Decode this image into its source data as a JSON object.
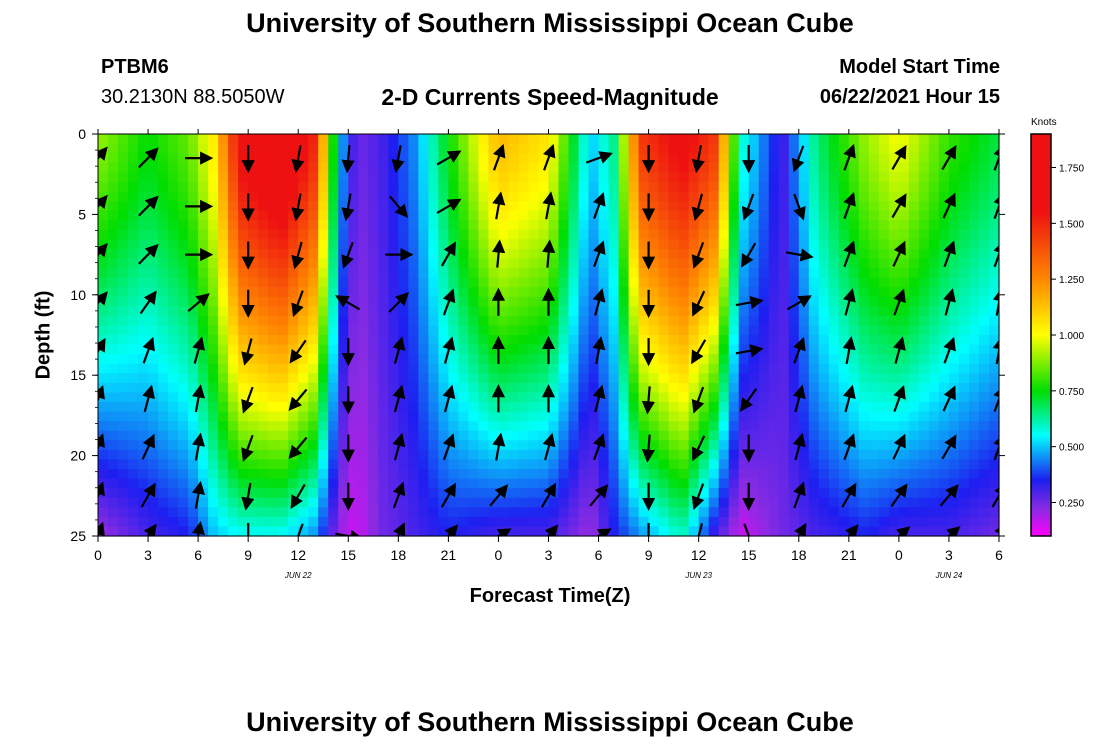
{
  "header": {
    "title": "University of Southern Mississippi Ocean Cube",
    "station": "PTBM6",
    "coords": "30.2130N  88.5050W",
    "subtitle": "2-D Currents Speed-Magnitude",
    "start_label": "Model Start Time",
    "start_date": "06/22/2021 Hour 15"
  },
  "footer": {
    "title": "University of Southern Mississippi Ocean Cube"
  },
  "colors": {
    "magenta": "#ff00ff",
    "purple": "#8a2be2",
    "blue": "#1e1ef0",
    "cyan": "#00ffff",
    "green": "#00dd00",
    "yellow": "#ffff00",
    "orange": "#ff8800",
    "red": "#ee1111",
    "arrow": "#000000"
  },
  "chart_data": {
    "type": "heatmap",
    "title": "2-D Currents Speed-Magnitude",
    "xlabel": "Forecast Time(Z)",
    "ylabel": "Depth (ft)",
    "x_tick_labels": [
      "0",
      "3",
      "6",
      "9",
      "12",
      "15",
      "18",
      "21",
      "0",
      "3",
      "6",
      "9",
      "12",
      "15",
      "18",
      "21",
      "0",
      "3",
      "6"
    ],
    "x_range_hours": [
      0,
      54
    ],
    "day_labels": [
      {
        "label": "JUN 22",
        "hour": 12
      },
      {
        "label": "JUN 23",
        "hour": 36
      },
      {
        "label": "JUN 24",
        "hour": 51
      }
    ],
    "y_ticks": [
      0,
      5,
      10,
      15,
      20,
      25
    ],
    "ylim": [
      0,
      25
    ],
    "y_inverted": true,
    "colorbar": {
      "unit": "Knots",
      "tick_labels": [
        "0.250",
        "0.500",
        "0.750",
        "1.000",
        "1.250",
        "1.500",
        "1.750"
      ],
      "ticks": [
        0.25,
        0.5,
        0.75,
        1.0,
        1.25,
        1.5,
        1.75
      ],
      "range": [
        0.1,
        1.9
      ]
    },
    "speed_profiles": [
      {
        "hour": 0,
        "surface": 0.9,
        "bottom": 0.2
      },
      {
        "hour": 3,
        "surface": 0.75,
        "bottom": 0.3
      },
      {
        "hour": 5.5,
        "surface": 0.85,
        "bottom": 0.35
      },
      {
        "hour": 7,
        "surface": 1.05,
        "bottom": 0.5
      },
      {
        "hour": 8.5,
        "surface": 1.6,
        "bottom": 0.55
      },
      {
        "hour": 11,
        "surface": 1.75,
        "bottom": 0.55
      },
      {
        "hour": 13,
        "surface": 1.5,
        "bottom": 0.45
      },
      {
        "hour": 14.5,
        "surface": 0.5,
        "bottom": 0.2
      },
      {
        "hour": 15.5,
        "surface": 0.25,
        "bottom": 0.15
      },
      {
        "hour": 17,
        "surface": 0.3,
        "bottom": 0.25
      },
      {
        "hour": 19,
        "surface": 0.45,
        "bottom": 0.3
      },
      {
        "hour": 21,
        "surface": 0.75,
        "bottom": 0.35
      },
      {
        "hour": 24,
        "surface": 1.15,
        "bottom": 0.3
      },
      {
        "hour": 27,
        "surface": 1.05,
        "bottom": 0.3
      },
      {
        "hour": 29.5,
        "surface": 0.5,
        "bottom": 0.2
      },
      {
        "hour": 31,
        "surface": 0.65,
        "bottom": 0.35
      },
      {
        "hour": 32.5,
        "surface": 1.45,
        "bottom": 0.45
      },
      {
        "hour": 35,
        "surface": 1.6,
        "bottom": 0.6
      },
      {
        "hour": 37,
        "surface": 1.45,
        "bottom": 0.3
      },
      {
        "hour": 38.5,
        "surface": 0.6,
        "bottom": 0.15
      },
      {
        "hour": 41,
        "surface": 0.3,
        "bottom": 0.25
      },
      {
        "hour": 43,
        "surface": 0.65,
        "bottom": 0.3
      },
      {
        "hour": 46,
        "surface": 0.9,
        "bottom": 0.35
      },
      {
        "hour": 48,
        "surface": 1.0,
        "bottom": 0.3
      },
      {
        "hour": 51,
        "surface": 0.8,
        "bottom": 0.3
      },
      {
        "hour": 54,
        "surface": 0.7,
        "bottom": 0.25
      }
    ],
    "arrow_hours": [
      0,
      3,
      6,
      9,
      12,
      15,
      18,
      21,
      24,
      27,
      30,
      33,
      36,
      39,
      42,
      45,
      48,
      51,
      54
    ],
    "arrow_depths": [
      1.5,
      4.5,
      7.5,
      10.5,
      13.5,
      16.5,
      19.5,
      22.5,
      25
    ],
    "arrow_directions_deg": [
      [
        40,
        40,
        40,
        40,
        30,
        20,
        20,
        20,
        20
      ],
      [
        45,
        45,
        45,
        35,
        20,
        15,
        25,
        30,
        35
      ],
      [
        90,
        90,
        90,
        50,
        15,
        10,
        10,
        10,
        10
      ],
      [
        180,
        180,
        180,
        180,
        195,
        200,
        200,
        190,
        180
      ],
      [
        190,
        190,
        195,
        200,
        215,
        220,
        220,
        210,
        200
      ],
      [
        185,
        190,
        200,
        300,
        180,
        180,
        180,
        180,
        100
      ],
      [
        190,
        140,
        90,
        45,
        15,
        15,
        15,
        20,
        25
      ],
      [
        60,
        60,
        30,
        20,
        15,
        15,
        20,
        30,
        40
      ],
      [
        20,
        10,
        5,
        0,
        0,
        0,
        10,
        40,
        60
      ],
      [
        20,
        10,
        5,
        0,
        0,
        0,
        15,
        30,
        40
      ],
      [
        70,
        20,
        20,
        15,
        10,
        15,
        20,
        40,
        60
      ],
      [
        180,
        180,
        180,
        180,
        180,
        185,
        185,
        180,
        180
      ],
      [
        190,
        195,
        200,
        205,
        210,
        200,
        205,
        200,
        195
      ],
      [
        180,
        200,
        210,
        80,
        80,
        215,
        180,
        180,
        160
      ],
      [
        200,
        160,
        100,
        60,
        20,
        15,
        15,
        20,
        30
      ],
      [
        20,
        20,
        20,
        15,
        10,
        15,
        20,
        30,
        40
      ],
      [
        30,
        30,
        25,
        20,
        15,
        20,
        25,
        35,
        50
      ],
      [
        30,
        25,
        20,
        15,
        20,
        25,
        30,
        40,
        50
      ],
      [
        20,
        20,
        20,
        10,
        10,
        20,
        20,
        30,
        30
      ]
    ]
  }
}
